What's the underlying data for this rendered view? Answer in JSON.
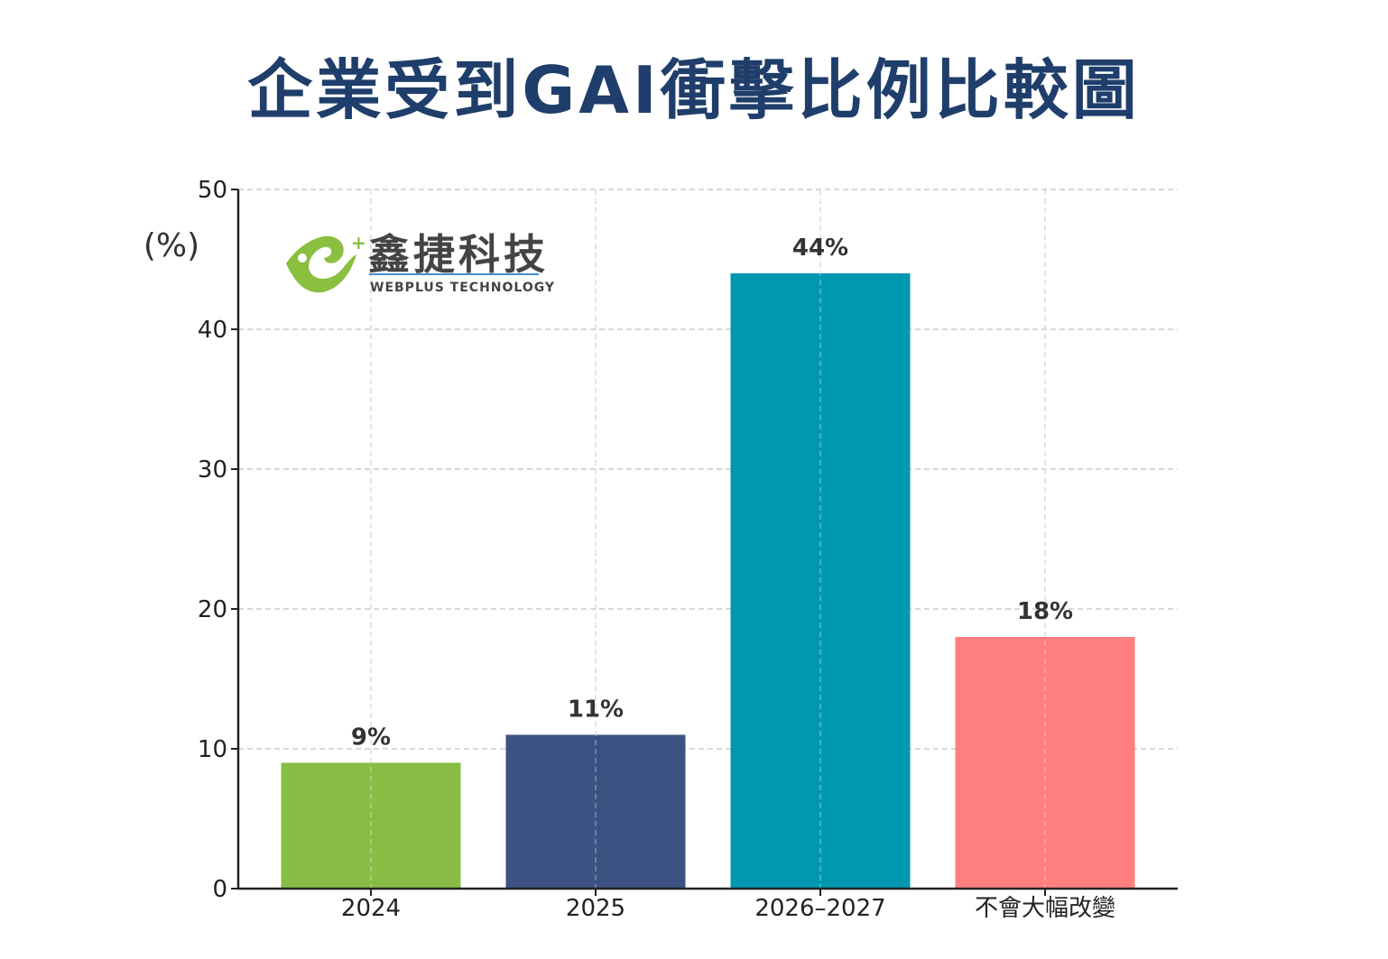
{
  "colors": {
    "title": "#1f3e6b",
    "grid": "#cccccc",
    "axis": "#222222",
    "logo_green": "#8abf3f",
    "logo_blue": "#3f8fd0"
  },
  "logo": {
    "icon": "webplus-leaf-logo-icon",
    "name_cn": "鑫捷科技",
    "name_en": "WEBPLUS TECHNOLOGY"
  },
  "chart_data": {
    "type": "bar",
    "title": "企業受到GAI衝擊比例比較圖",
    "ylabel": "(%)",
    "xlabel": "",
    "categories": [
      "2024",
      "2025",
      "2026–2027",
      "不會大幅改變"
    ],
    "values": [
      9,
      11,
      44,
      18
    ],
    "value_labels": [
      "9%",
      "11%",
      "44%",
      "18%"
    ],
    "bar_colors": [
      "#87bd45",
      "#3c5282",
      "#0098b1",
      "#ff7f7f"
    ],
    "ylim": [
      0,
      50
    ],
    "yticks": [
      0,
      10,
      20,
      30,
      40,
      50
    ],
    "grid": true,
    "grid_style": "dashed"
  }
}
